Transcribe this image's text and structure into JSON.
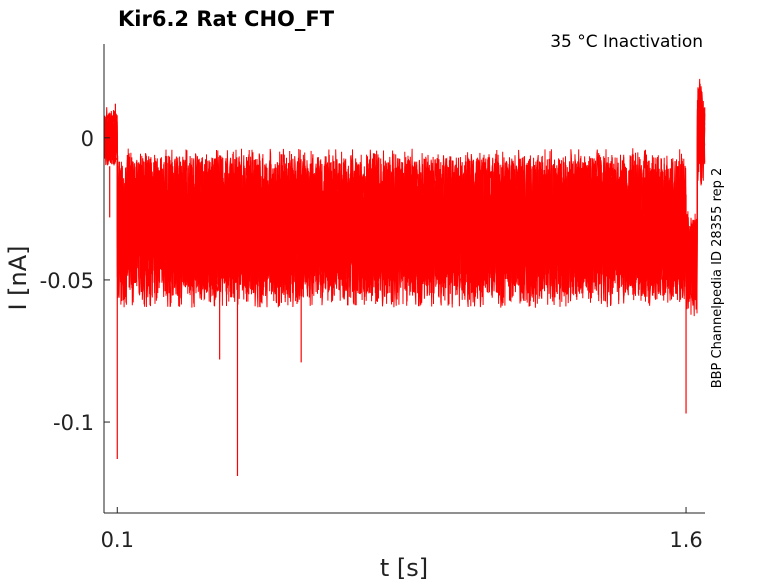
{
  "chart_data": {
    "type": "line",
    "title": "Kir6.2  Rat  CHO_FT",
    "subtitle": "35 °C  Inactivation",
    "side_label": "BBP Channelpedia ID 28355 rep 2",
    "xlabel": "t [s]",
    "ylabel": "I [nA]",
    "xlim": [
      0.065,
      1.65
    ],
    "ylim": [
      -0.132,
      0.033
    ],
    "x_ticks": [
      {
        "value": 0.1,
        "label": "0.1"
      },
      {
        "value": 1.6,
        "label": "1.6"
      }
    ],
    "y_ticks": [
      {
        "value": 0,
        "label": "0"
      },
      {
        "value": -0.05,
        "label": "-0.05"
      },
      {
        "value": -0.1,
        "label": "-0.1"
      }
    ],
    "grid": false,
    "series_color": "#ff0000",
    "n_sweeps": 10,
    "segments": [
      {
        "x_start": 0.065,
        "x_end": 0.1,
        "mean_current": 0.0,
        "noise": 0.012
      },
      {
        "x_start": 0.1,
        "x_end": 1.6,
        "mean_current": -0.032,
        "noise": 0.046
      },
      {
        "x_start": 1.6,
        "x_end": 1.63,
        "mean_current": -0.044,
        "noise": 0.028
      },
      {
        "x_start": 1.63,
        "x_end": 1.65,
        "mean_current": 0.002,
        "noise": 0.028
      }
    ],
    "spikes": [
      {
        "x": 0.1,
        "value": -0.113
      },
      {
        "x": 0.08,
        "value": -0.028
      },
      {
        "x": 0.095,
        "value": 0.012
      },
      {
        "x": 0.417,
        "value": -0.119
      },
      {
        "x": 0.37,
        "value": -0.078
      },
      {
        "x": 0.585,
        "value": -0.079
      },
      {
        "x": 1.6,
        "value": -0.097
      },
      {
        "x": 1.637,
        "value": 0.019
      }
    ]
  }
}
